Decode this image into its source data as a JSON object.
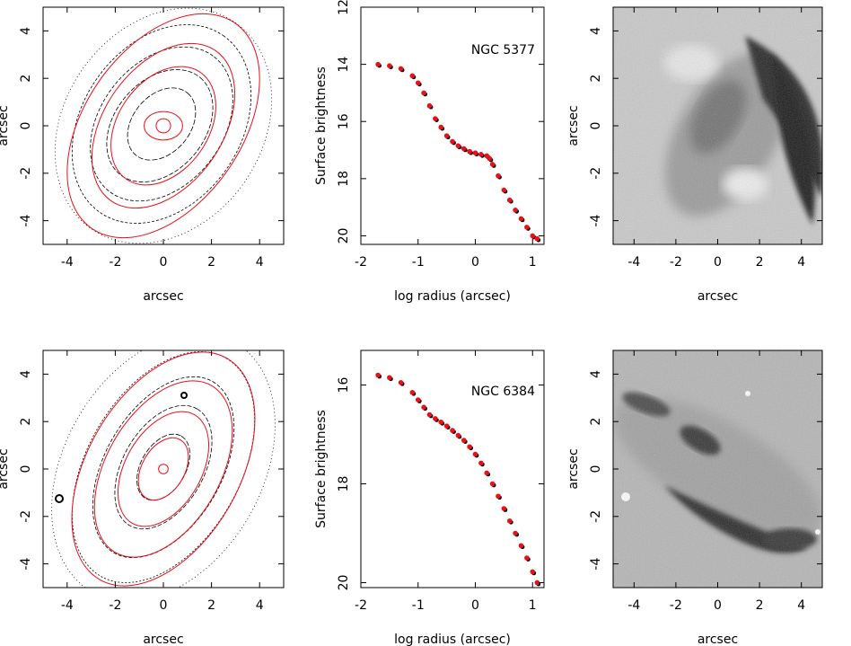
{
  "chart_data": [
    {
      "type": "contour",
      "panel": "contour-ngc5377",
      "xlabel": "arcsec",
      "ylabel": "arcsec",
      "xlim": [
        -5,
        5
      ],
      "ylim": [
        -5,
        5
      ],
      "xticks": [
        "-4",
        "-2",
        "0",
        "2",
        "4"
      ],
      "yticks": [
        "-4",
        "-2",
        "0",
        "2",
        "4"
      ],
      "ellipses": [
        {
          "a": 0.3,
          "b": 0.3,
          "angle": 0
        },
        {
          "a": 0.8,
          "b": 0.6,
          "angle": 0
        },
        {
          "a": 2.7,
          "b": 1.9,
          "angle": -55
        },
        {
          "a": 3.8,
          "b": 2.5,
          "angle": -55
        },
        {
          "a": 5.2,
          "b": 3.3,
          "angle": -55
        }
      ]
    },
    {
      "type": "scatter",
      "panel": "profile-ngc5377",
      "label": "NGC 5377",
      "xlabel": "log radius (arcsec)",
      "ylabel": "Surface brightness",
      "xlim": [
        -2,
        1.2
      ],
      "ylim": [
        20.3,
        12
      ],
      "xticks": [
        "-2",
        "-1",
        "0",
        "1"
      ],
      "yticks": [
        "12",
        "14",
        "16",
        "18",
        "20"
      ],
      "x": [
        -1.7,
        -1.5,
        -1.3,
        -1.1,
        -1.0,
        -0.9,
        -0.8,
        -0.7,
        -0.6,
        -0.5,
        -0.4,
        -0.3,
        -0.2,
        -0.1,
        0.0,
        0.1,
        0.2,
        0.25,
        0.3,
        0.4,
        0.5,
        0.6,
        0.7,
        0.8,
        0.9,
        1.0,
        1.08
      ],
      "y": [
        14.0,
        14.05,
        14.15,
        14.4,
        14.65,
        15.0,
        15.45,
        15.9,
        16.2,
        16.5,
        16.7,
        16.85,
        16.95,
        17.05,
        17.1,
        17.15,
        17.2,
        17.3,
        17.5,
        17.9,
        18.4,
        18.75,
        19.1,
        19.4,
        19.7,
        20.0,
        20.1
      ]
    },
    {
      "type": "image",
      "panel": "residual-ngc5377",
      "xlabel": "arcsec",
      "ylabel": "arcsec",
      "xlim": [
        -5,
        5
      ],
      "ylim": [
        -5,
        5
      ],
      "xticks": [
        "-4",
        "-2",
        "0",
        "2",
        "4"
      ],
      "yticks": [
        "-4",
        "-2",
        "0",
        "2",
        "4"
      ]
    },
    {
      "type": "contour",
      "panel": "contour-ngc6384",
      "xlabel": "arcsec",
      "ylabel": "arcsec",
      "xlim": [
        -5,
        5
      ],
      "ylim": [
        -5,
        5
      ],
      "xticks": [
        "-4",
        "-2",
        "0",
        "2",
        "4"
      ],
      "yticks": [
        "-4",
        "-2",
        "0",
        "2",
        "4"
      ],
      "ellipses": [
        {
          "a": 0.2,
          "b": 0.2,
          "angle": 0
        },
        {
          "a": 1.4,
          "b": 0.9,
          "angle": -60
        },
        {
          "a": 2.6,
          "b": 1.6,
          "angle": -60
        },
        {
          "a": 4.0,
          "b": 2.4,
          "angle": -60
        },
        {
          "a": 5.3,
          "b": 3.2,
          "angle": -60
        }
      ]
    },
    {
      "type": "scatter",
      "panel": "profile-ngc6384",
      "label": "NGC 6384",
      "xlabel": "log radius (arcsec)",
      "ylabel": "Surface brightness",
      "xlim": [
        -2,
        1.2
      ],
      "ylim": [
        20.1,
        15.3
      ],
      "xticks": [
        "-2",
        "-1",
        "0",
        "1"
      ],
      "yticks": [
        "16",
        "18",
        "20"
      ],
      "x": [
        -1.7,
        -1.5,
        -1.3,
        -1.1,
        -1.0,
        -0.9,
        -0.8,
        -0.7,
        -0.6,
        -0.5,
        -0.4,
        -0.3,
        -0.2,
        -0.1,
        0.0,
        0.1,
        0.2,
        0.3,
        0.4,
        0.5,
        0.6,
        0.7,
        0.8,
        0.9,
        1.0,
        1.08
      ],
      "y": [
        15.8,
        15.85,
        15.95,
        16.15,
        16.3,
        16.45,
        16.6,
        16.68,
        16.75,
        16.83,
        16.92,
        17.02,
        17.12,
        17.25,
        17.4,
        17.58,
        17.78,
        18.0,
        18.25,
        18.5,
        18.75,
        19.0,
        19.25,
        19.5,
        19.78,
        20.0
      ]
    },
    {
      "type": "image",
      "panel": "residual-ngc6384",
      "xlabel": "arcsec",
      "ylabel": "arcsec",
      "xlim": [
        -5,
        5
      ],
      "ylim": [
        -5,
        5
      ],
      "xticks": [
        "-4",
        "-2",
        "0",
        "2",
        "4"
      ],
      "yticks": [
        "-4",
        "-2",
        "0",
        "2",
        "4"
      ]
    }
  ]
}
